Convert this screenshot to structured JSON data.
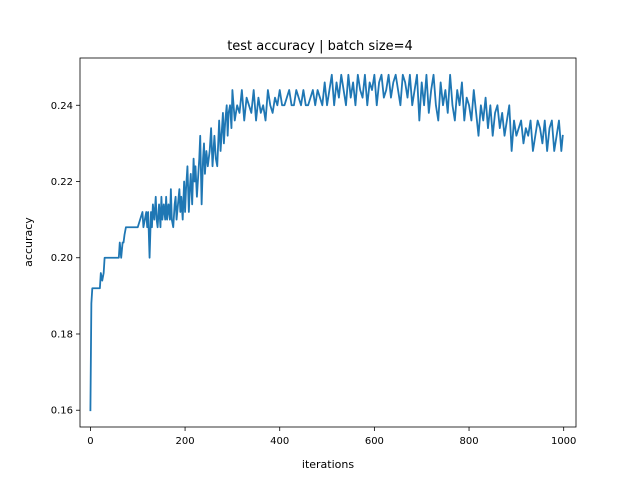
{
  "chart_data": {
    "type": "line",
    "title": "test accuracy | batch size=4",
    "xlabel": "iterations",
    "ylabel": "accuracy",
    "xlim": [
      -22,
      1026
    ],
    "ylim": [
      0.1556,
      0.2524
    ],
    "xticks": [
      0,
      200,
      400,
      600,
      800,
      1000
    ],
    "xtick_labels": [
      "0",
      "200",
      "400",
      "600",
      "800",
      "1000"
    ],
    "yticks": [
      0.16,
      0.18,
      0.2,
      0.22,
      0.24
    ],
    "ytick_labels": [
      "0.16",
      "0.18",
      "0.20",
      "0.22",
      "0.24"
    ],
    "grid": false,
    "legend": "none",
    "series_color": "#1f77b4",
    "series": [
      {
        "x": [
          0,
          2,
          4,
          6,
          10,
          14,
          18,
          20,
          22,
          25,
          28,
          30,
          40,
          50,
          60,
          62,
          65,
          68,
          70,
          72,
          75,
          80,
          90,
          100,
          110,
          112,
          115,
          118,
          120,
          122,
          125,
          128,
          130,
          132,
          135,
          138,
          140,
          142,
          145,
          148,
          150,
          152,
          155,
          158,
          160,
          162,
          165,
          168,
          170,
          172,
          175,
          178,
          180,
          182,
          185,
          188,
          190,
          192,
          195,
          198,
          200,
          202,
          205,
          208,
          210,
          212,
          215,
          218,
          220,
          222,
          225,
          228,
          230,
          232,
          235,
          238,
          240,
          242,
          245,
          248,
          250,
          252,
          255,
          258,
          260,
          262,
          265,
          268,
          270,
          272,
          275,
          278,
          280,
          282,
          285,
          288,
          290,
          292,
          295,
          298,
          300,
          305,
          310,
          315,
          320,
          325,
          330,
          335,
          340,
          345,
          350,
          355,
          360,
          365,
          370,
          375,
          380,
          385,
          390,
          395,
          400,
          405,
          410,
          415,
          420,
          425,
          430,
          435,
          440,
          445,
          450,
          455,
          460,
          465,
          470,
          475,
          480,
          485,
          490,
          495,
          500,
          505,
          510,
          515,
          520,
          525,
          530,
          535,
          540,
          545,
          550,
          555,
          560,
          565,
          570,
          575,
          580,
          585,
          590,
          595,
          600,
          605,
          610,
          615,
          620,
          625,
          630,
          635,
          640,
          645,
          650,
          655,
          660,
          665,
          670,
          675,
          680,
          685,
          690,
          695,
          700,
          705,
          710,
          715,
          720,
          725,
          730,
          735,
          740,
          745,
          750,
          755,
          760,
          765,
          770,
          775,
          780,
          785,
          790,
          795,
          800,
          805,
          810,
          815,
          820,
          825,
          830,
          835,
          840,
          845,
          850,
          855,
          860,
          865,
          870,
          875,
          880,
          885,
          890,
          895,
          900,
          905,
          910,
          915,
          920,
          925,
          930,
          935,
          940,
          945,
          950,
          955,
          960,
          965,
          970,
          975,
          980,
          985,
          990,
          995,
          998
        ],
        "y": [
          0.16,
          0.188,
          0.192,
          0.192,
          0.192,
          0.192,
          0.192,
          0.192,
          0.196,
          0.194,
          0.196,
          0.2,
          0.2,
          0.2,
          0.2,
          0.204,
          0.2,
          0.204,
          0.204,
          0.206,
          0.208,
          0.208,
          0.208,
          0.208,
          0.212,
          0.208,
          0.21,
          0.212,
          0.208,
          0.212,
          0.2,
          0.212,
          0.208,
          0.214,
          0.21,
          0.216,
          0.21,
          0.208,
          0.214,
          0.208,
          0.216,
          0.21,
          0.214,
          0.21,
          0.216,
          0.21,
          0.214,
          0.21,
          0.218,
          0.21,
          0.208,
          0.214,
          0.216,
          0.21,
          0.214,
          0.218,
          0.212,
          0.216,
          0.21,
          0.22,
          0.212,
          0.218,
          0.224,
          0.212,
          0.218,
          0.222,
          0.214,
          0.226,
          0.22,
          0.224,
          0.216,
          0.222,
          0.226,
          0.232,
          0.214,
          0.226,
          0.23,
          0.222,
          0.228,
          0.224,
          0.226,
          0.228,
          0.234,
          0.224,
          0.228,
          0.232,
          0.226,
          0.224,
          0.23,
          0.236,
          0.228,
          0.234,
          0.238,
          0.23,
          0.236,
          0.24,
          0.232,
          0.238,
          0.24,
          0.234,
          0.244,
          0.236,
          0.24,
          0.238,
          0.244,
          0.236,
          0.242,
          0.24,
          0.238,
          0.244,
          0.236,
          0.242,
          0.238,
          0.24,
          0.236,
          0.244,
          0.24,
          0.238,
          0.242,
          0.24,
          0.244,
          0.24,
          0.24,
          0.242,
          0.244,
          0.24,
          0.24,
          0.244,
          0.242,
          0.24,
          0.244,
          0.24,
          0.24,
          0.242,
          0.244,
          0.24,
          0.244,
          0.242,
          0.24,
          0.246,
          0.24,
          0.244,
          0.248,
          0.24,
          0.246,
          0.242,
          0.248,
          0.244,
          0.24,
          0.248,
          0.242,
          0.246,
          0.24,
          0.248,
          0.244,
          0.242,
          0.248,
          0.24,
          0.246,
          0.244,
          0.248,
          0.24,
          0.246,
          0.248,
          0.242,
          0.244,
          0.248,
          0.242,
          0.246,
          0.248,
          0.244,
          0.24,
          0.248,
          0.246,
          0.242,
          0.248,
          0.24,
          0.244,
          0.248,
          0.236,
          0.246,
          0.24,
          0.248,
          0.238,
          0.244,
          0.248,
          0.24,
          0.236,
          0.246,
          0.24,
          0.244,
          0.238,
          0.248,
          0.24,
          0.236,
          0.244,
          0.24,
          0.246,
          0.236,
          0.242,
          0.24,
          0.236,
          0.244,
          0.238,
          0.232,
          0.24,
          0.236,
          0.242,
          0.234,
          0.24,
          0.232,
          0.238,
          0.24,
          0.234,
          0.238,
          0.232,
          0.236,
          0.24,
          0.228,
          0.236,
          0.232,
          0.234,
          0.236,
          0.23,
          0.234,
          0.232,
          0.236,
          0.228,
          0.232,
          0.236,
          0.234,
          0.23,
          0.236,
          0.228,
          0.234,
          0.236,
          0.228,
          0.232,
          0.236,
          0.228,
          0.232
        ]
      }
    ]
  }
}
